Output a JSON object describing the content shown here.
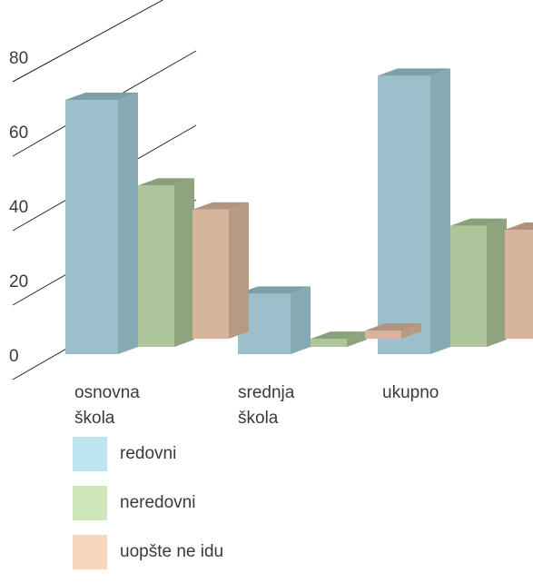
{
  "chart_data": {
    "type": "bar",
    "categories": [
      [
        "osnovna",
        "škola"
      ],
      [
        "srednja",
        "škola"
      ],
      [
        "ukupno"
      ]
    ],
    "series": [
      {
        "name": "redovni",
        "values": [
          63,
          15,
          69
        ],
        "color": "#9bc0cb",
        "side": "#87a9b3",
        "top": "#7f9fa8",
        "swatch": "#bde4ef"
      },
      {
        "name": "neredovni",
        "values": [
          40,
          2,
          30
        ],
        "color": "#aec49b",
        "side": "#8fa37f",
        "top": "#8aa07a",
        "swatch": "#cfe6bb"
      },
      {
        "name": "uopšte ne idu",
        "values": [
          32,
          2,
          27
        ],
        "color": "#d6b59c",
        "side": "#b79a84",
        "top": "#b0937e",
        "swatch": "#f6d6bd"
      }
    ],
    "ylim": [
      0,
      80
    ],
    "yticks": [
      "0",
      "20",
      "40",
      "60",
      "80"
    ],
    "grid": true,
    "legend_position": "bottom-left"
  }
}
